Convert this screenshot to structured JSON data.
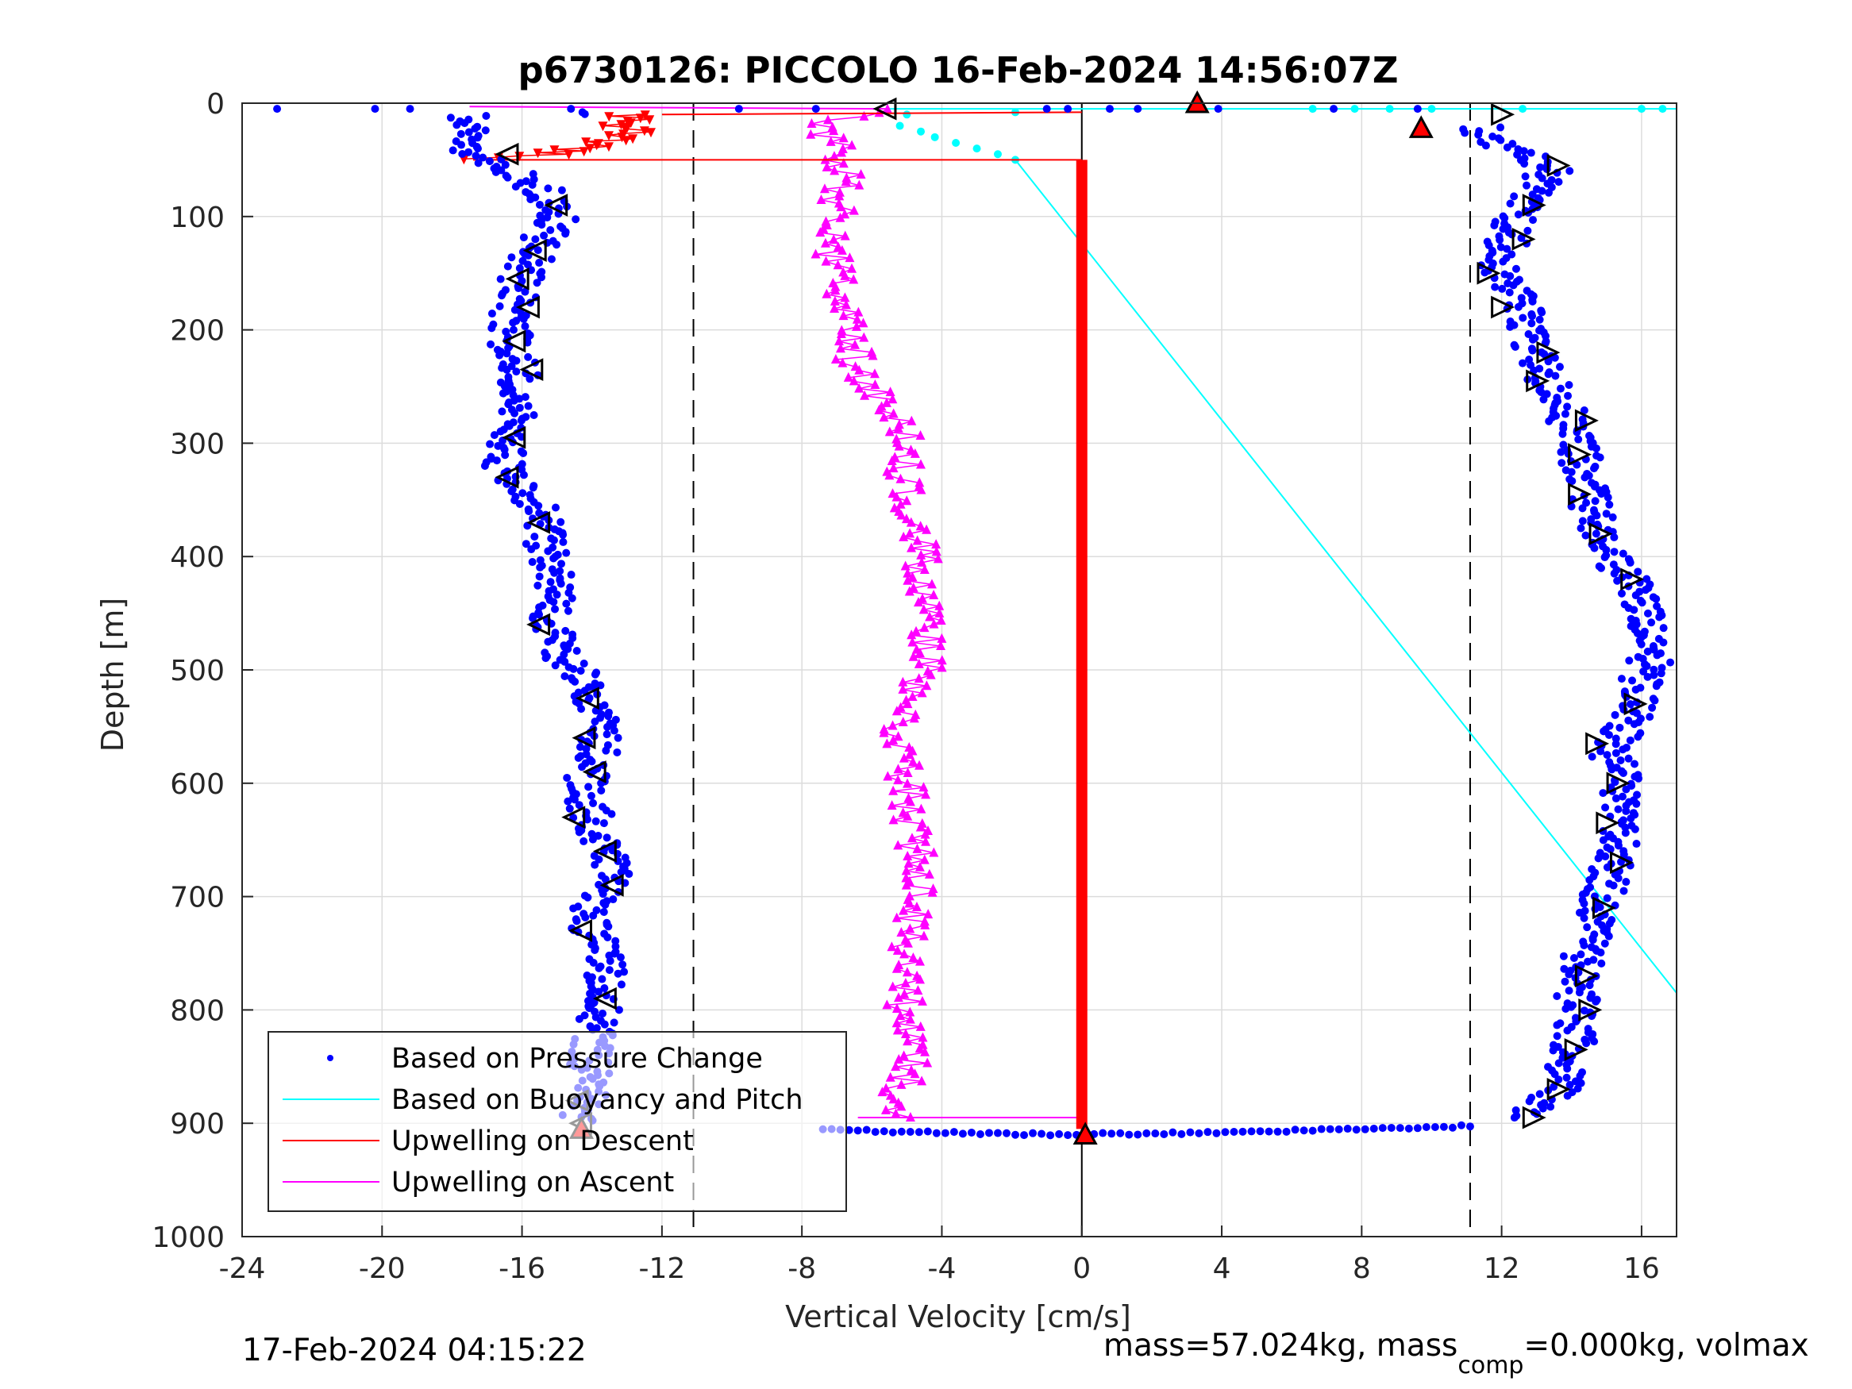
{
  "chart_data": {
    "type": "scatter",
    "title": "p6730126: PICCOLO 16-Feb-2024 14:56:07Z",
    "xlabel": "Vertical Velocity [cm/s]",
    "ylabel": "Depth [m]",
    "xlim": [
      -24,
      17
    ],
    "ylim": [
      0,
      1000
    ],
    "y_reversed": true,
    "grid": true,
    "xticks": [
      "-24",
      "-20",
      "-16",
      "-12",
      "-8",
      "-4",
      "0",
      "4",
      "8",
      "12",
      "16"
    ],
    "yticks": [
      "0",
      "100",
      "200",
      "300",
      "400",
      "500",
      "600",
      "700",
      "800",
      "900",
      "1000"
    ],
    "legend_position": "bottom-left",
    "legend": [
      {
        "label": "Based on Pressure Change",
        "color": "#0000ff",
        "marker": "dot"
      },
      {
        "label": "Based on Buoyancy and Pitch",
        "color": "#00ffff",
        "marker": "line"
      },
      {
        "label": "Upwelling on Descent",
        "color": "#ff0000",
        "marker": "line"
      },
      {
        "label": "Upwelling on Ascent",
        "color": "#ff00ff",
        "marker": "line"
      }
    ],
    "reference_lines": {
      "dashed_x": [
        -11.1,
        11.1
      ],
      "solid_x": [
        0
      ]
    },
    "series": [
      {
        "name": "Based on Pressure Change",
        "color": "#0000ff",
        "descent": {
          "depth": [
            10,
            20,
            30,
            40,
            50,
            60,
            80,
            100,
            130,
            150,
            180,
            200,
            230,
            260,
            290,
            320,
            340,
            370,
            400,
            430,
            460,
            490,
            520,
            550,
            580,
            600,
            630,
            660,
            690,
            720,
            750,
            780,
            810,
            840,
            870,
            895
          ],
          "velocity": [
            -17.5,
            -17.8,
            -17.2,
            -17.6,
            -16.9,
            -16.2,
            -15.3,
            -15.0,
            -15.6,
            -16.0,
            -16.2,
            -16.4,
            -16.2,
            -15.9,
            -16.3,
            -16.6,
            -15.8,
            -15.4,
            -15.3,
            -15.0,
            -15.2,
            -14.8,
            -14.0,
            -13.6,
            -13.9,
            -14.2,
            -14.0,
            -13.5,
            -13.4,
            -14.2,
            -13.7,
            -13.5,
            -13.9,
            -14.0,
            -14.1,
            -14.3
          ]
        },
        "ascent": {
          "depth": [
            895,
            870,
            840,
            810,
            780,
            750,
            720,
            690,
            660,
            630,
            600,
            570,
            540,
            510,
            480,
            450,
            420,
            390,
            360,
            330,
            300,
            270,
            240,
            210,
            180,
            150,
            120,
            90,
            60,
            40,
            25
          ],
          "velocity": [
            12.8,
            13.6,
            14.0,
            14.2,
            14.1,
            14.4,
            14.7,
            15.0,
            15.3,
            15.2,
            15.4,
            15.1,
            15.8,
            16.0,
            16.4,
            16.2,
            15.6,
            14.9,
            14.6,
            14.3,
            14.2,
            13.8,
            13.2,
            12.8,
            12.6,
            11.9,
            12.2,
            12.6,
            13.4,
            12.3,
            11.4
          ]
        },
        "surface_points": {
          "depth": [
            5,
            5,
            5,
            5,
            5,
            5,
            5,
            5,
            5,
            5,
            5,
            5,
            5
          ],
          "velocity": [
            -23.0,
            -20.2,
            -19.2,
            -14.6,
            -9.8,
            -7.6,
            -1.0,
            -0.4,
            0.8,
            1.6,
            3.9,
            7.2,
            9.6
          ]
        },
        "bottom_points": {
          "depth": [
            905,
            907,
            908,
            909,
            910,
            909,
            908,
            906,
            905,
            904,
            902
          ],
          "velocity": [
            -7.4,
            -5.6,
            -4.0,
            -2.4,
            -0.8,
            2.0,
            4.5,
            6.8,
            8.5,
            10.0,
            11.2
          ]
        }
      },
      {
        "name": "Based on Buoyancy and Pitch",
        "color": "#00ffff",
        "line": {
          "depth": [
            50,
            785
          ],
          "velocity": [
            -1.9,
            17.0
          ]
        },
        "points": {
          "depth": [
            5,
            5,
            5,
            5,
            5,
            5,
            5,
            8,
            10,
            20,
            25,
            30,
            35,
            40,
            45,
            50
          ],
          "velocity": [
            6.6,
            7.8,
            8.8,
            10.0,
            12.6,
            16.0,
            16.6,
            -1.9,
            -5.0,
            -5.2,
            -4.6,
            -4.2,
            -3.6,
            -3.0,
            -2.4,
            -1.9
          ]
        }
      },
      {
        "name": "Upwelling on Descent",
        "color": "#ff0000",
        "points": {
          "depth": [
            10,
            15,
            20,
            25,
            30,
            35,
            40,
            45,
            50
          ],
          "velocity": [
            -13.0,
            -12.6,
            -13.2,
            -12.8,
            -13.4,
            -13.6,
            -14.5,
            -15.2,
            -17.4
          ]
        },
        "zero_band": {
          "depth": [
            50,
            905
          ],
          "velocity": 0.1
        }
      },
      {
        "name": "Upwelling on Ascent",
        "color": "#ff00ff",
        "depth": [
          895,
          870,
          840,
          810,
          780,
          750,
          720,
          690,
          660,
          630,
          600,
          570,
          540,
          510,
          480,
          450,
          420,
          390,
          360,
          330,
          300,
          270,
          240,
          210,
          180,
          150,
          120,
          100,
          80,
          60,
          40,
          20,
          5
        ],
        "velocity": [
          -5.0,
          -5.2,
          -4.8,
          -5.2,
          -5.0,
          -5.0,
          -4.8,
          -4.6,
          -4.7,
          -4.9,
          -5.0,
          -5.2,
          -5.2,
          -4.6,
          -4.4,
          -4.3,
          -4.5,
          -4.7,
          -5.0,
          -5.2,
          -5.0,
          -5.6,
          -6.4,
          -6.6,
          -6.9,
          -7.1,
          -7.2,
          -7.0,
          -6.9,
          -6.8,
          -7.0,
          -7.4,
          -6.0
        ]
      },
      {
        "name": "Waypoint markers",
        "color": "#000000",
        "left_triangles": {
          "depth": [
            5,
            45,
            90,
            130,
            155,
            180,
            210,
            235,
            295,
            330,
            370,
            460,
            525,
            560,
            590,
            630,
            660,
            690,
            730,
            790,
            880,
            900
          ],
          "velocity": [
            -5.6,
            -16.4,
            -15.0,
            -15.6,
            -16.1,
            -15.8,
            -16.2,
            -15.7,
            -16.2,
            -16.4,
            -15.5,
            -15.5,
            -14.1,
            -14.2,
            -13.9,
            -14.5,
            -13.6,
            -13.4,
            -14.3,
            -13.6,
            -14.4,
            -14.3
          ]
        },
        "right_triangles": {
          "depth": [
            10,
            55,
            90,
            120,
            150,
            180,
            220,
            245,
            280,
            310,
            345,
            380,
            420,
            530,
            565,
            600,
            635,
            670,
            710,
            770,
            800,
            835,
            870,
            895
          ],
          "velocity": [
            12.0,
            13.6,
            12.9,
            12.6,
            11.6,
            12.0,
            13.3,
            13.0,
            14.4,
            14.2,
            14.2,
            14.8,
            15.7,
            15.8,
            14.7,
            15.3,
            15.0,
            15.4,
            14.9,
            14.4,
            14.5,
            14.1,
            13.6,
            12.9
          ]
        },
        "red_up_triangles": {
          "depth": [
            0,
            22,
            905,
            910
          ],
          "velocity": [
            3.3,
            9.7,
            -14.3,
            0.1
          ]
        }
      }
    ]
  },
  "footer": {
    "timestamp": "17-Feb-2024 04:15:22",
    "mass_text_a": "mass=57.024kg, mass",
    "mass_text_sub": "comp",
    "mass_text_b": "=0.000kg, volmax"
  }
}
